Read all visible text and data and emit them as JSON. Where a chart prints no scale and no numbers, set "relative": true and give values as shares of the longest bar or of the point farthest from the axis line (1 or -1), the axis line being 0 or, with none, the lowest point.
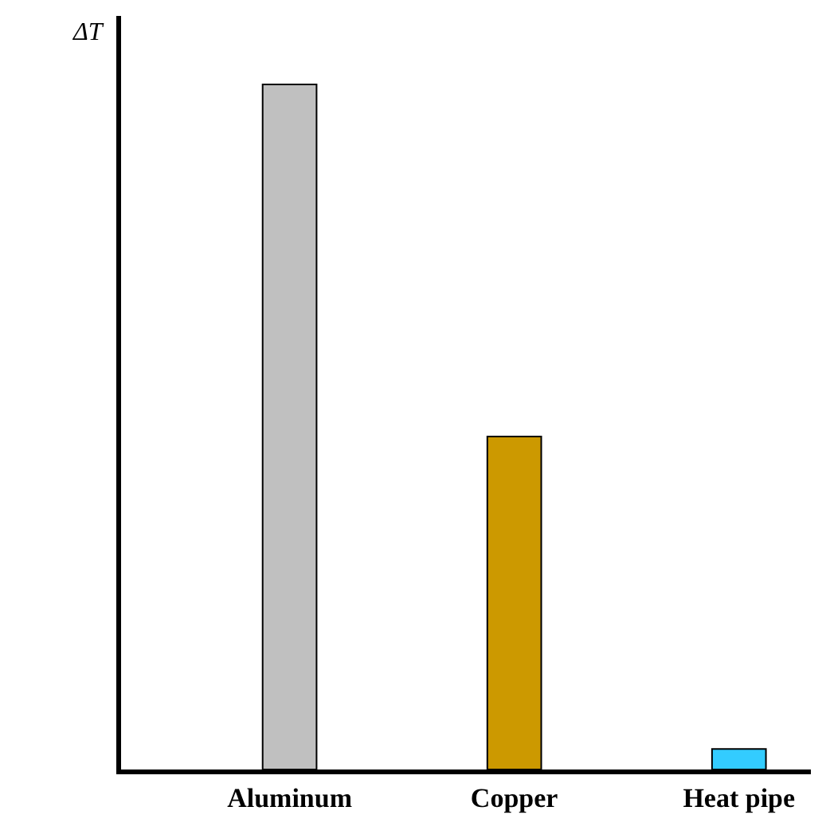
{
  "chart_data": {
    "type": "bar",
    "relative": true,
    "ylabel": "ΔT",
    "categories": [
      "Aluminum",
      "Copper",
      "Heat pipe"
    ],
    "values": [
      1,
      0.486,
      0.03
    ],
    "colors": [
      "#c0c0c0",
      "#cc9900",
      "#33ccff"
    ]
  }
}
